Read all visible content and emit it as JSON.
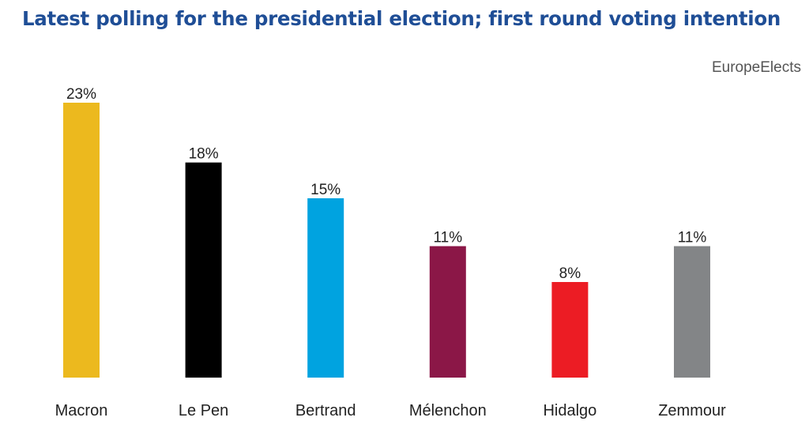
{
  "header": {
    "title": "Latest polling for the presidential election; first round voting intention",
    "source": "EuropeElects"
  },
  "chart_data": {
    "type": "bar",
    "title": "Latest polling for the presidential election; first round voting intention",
    "categories": [
      "Macron",
      "Le Pen",
      "Bertrand",
      "Mélenchon",
      "Hidalgo",
      "Zemmour"
    ],
    "values": [
      23,
      18,
      15,
      11,
      8,
      11
    ],
    "value_labels": [
      "23%",
      "18%",
      "15%",
      "11%",
      "8%",
      "11%"
    ],
    "colors": [
      "#ecb91e",
      "#000000",
      "#00a3e0",
      "#8b1747",
      "#ec1c24",
      "#838587"
    ],
    "ylim": [
      0,
      23
    ],
    "xlabel": "",
    "ylabel": "",
    "grid": false,
    "legend": "none"
  }
}
